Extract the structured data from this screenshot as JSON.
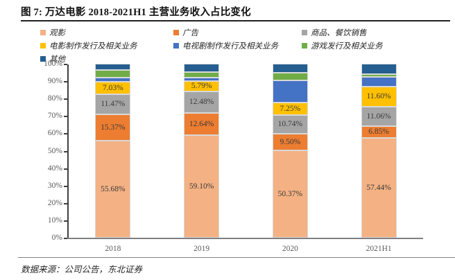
{
  "figure": {
    "title": "图 7: 万达电影 2018-2021H1 主营业务收入占比变化",
    "source": "数据来源：公司公告，东北证券"
  },
  "chart_data": {
    "type": "bar",
    "stacked": true,
    "unit": "percent",
    "title": "万达电影 2018-2021H1 主营业务收入占比变化",
    "categories": [
      "2018",
      "2019",
      "2020",
      "2021H1"
    ],
    "series": [
      {
        "name": "观影",
        "color": "#F4B183",
        "values": [
          55.68,
          59.1,
          50.37,
          57.44
        ],
        "labels": [
          "55.68%",
          "59.10%",
          "50.37%",
          "57.44%"
        ]
      },
      {
        "name": "广告",
        "color": "#ED7D31",
        "values": [
          15.37,
          12.64,
          9.5,
          6.85
        ],
        "labels": [
          "15.37%",
          "12.64%",
          "9.50%",
          "6.85%"
        ]
      },
      {
        "name": "商品、餐饮销售",
        "color": "#A5A5A5",
        "values": [
          11.47,
          12.48,
          10.74,
          11.06
        ],
        "labels": [
          "11.47%",
          "12.48%",
          "10.74%",
          "11.06%"
        ]
      },
      {
        "name": "电影制作发行及相关业务",
        "color": "#FFC000",
        "values": [
          7.03,
          5.79,
          7.25,
          11.6
        ],
        "labels": [
          "7.03%",
          "5.79%",
          "7.25%",
          "11.60%"
        ]
      },
      {
        "name": "电视剧制作发行及相关业务",
        "color": "#4472C4",
        "values": [
          2.4,
          2.0,
          12.6,
          5.3
        ],
        "labels": null
      },
      {
        "name": "游戏发行及相关业务",
        "color": "#70AD47",
        "values": [
          4.4,
          3.4,
          4.4,
          1.6
        ],
        "labels": null
      },
      {
        "name": "其他",
        "color": "#255E91",
        "values": [
          3.65,
          4.6,
          5.14,
          6.15
        ],
        "labels": null
      }
    ],
    "y_axis": {
      "min": 0,
      "max": 100,
      "step": 10,
      "tick_labels": [
        "0%",
        "10%",
        "20%",
        "30%",
        "40%",
        "50%",
        "60%",
        "70%",
        "80%",
        "90%",
        "100%"
      ]
    },
    "legend_position": "top",
    "grid": false
  }
}
